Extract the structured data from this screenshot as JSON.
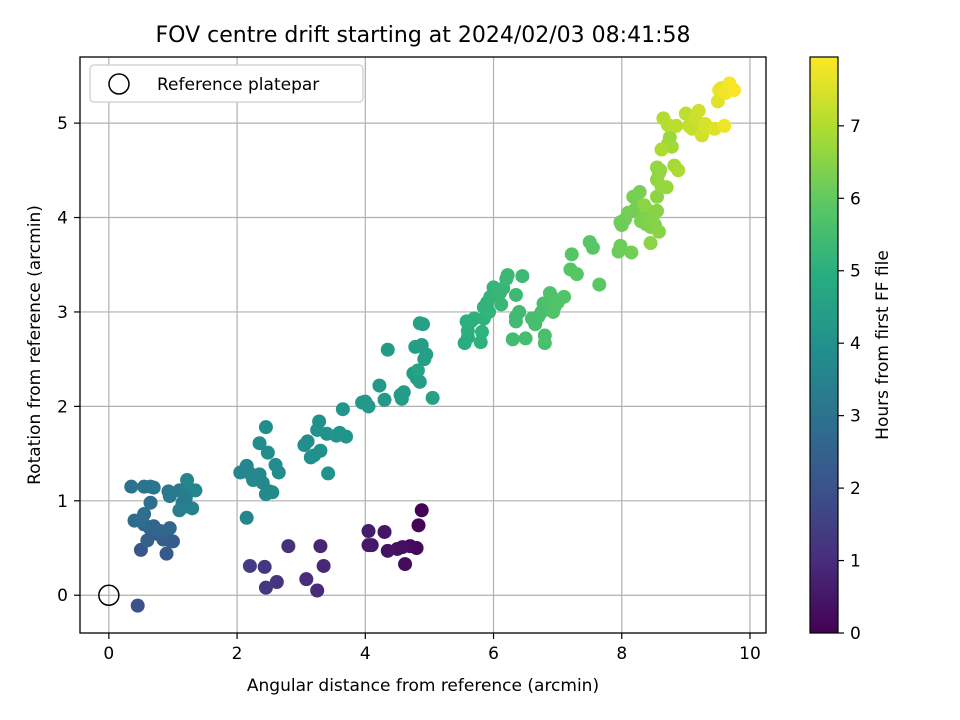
{
  "chart_data": {
    "type": "scatter",
    "title": "FOV centre drift starting at 2024/02/03 08:41:58",
    "xlabel": "Angular distance from reference (arcmin)",
    "ylabel": "Rotation from reference (arcmin)",
    "xlim": [
      -0.45,
      10.25
    ],
    "ylim": [
      -0.4,
      5.7
    ],
    "xticks": [
      "0",
      "2",
      "4",
      "6",
      "8",
      "10"
    ],
    "yticks": [
      "0",
      "1",
      "2",
      "3",
      "4",
      "5"
    ],
    "grid": true,
    "legend": {
      "placement": "top-left",
      "entries": [
        "Reference platepar"
      ]
    },
    "reference_point": {
      "x": 0,
      "y": 0
    },
    "colorbar": {
      "label": "Hours from first FF file",
      "range": [
        0,
        7.95
      ],
      "ticks": [
        "0",
        "1",
        "2",
        "3",
        "4",
        "5",
        "6",
        "7"
      ],
      "colormap": "viridis"
    },
    "points": [
      {
        "x": 4.88,
        "y": 0.9,
        "t": 0.05
      },
      {
        "x": 4.83,
        "y": 0.74,
        "t": 0.1
      },
      {
        "x": 4.8,
        "y": 0.5,
        "t": 0.15
      },
      {
        "x": 4.7,
        "y": 0.52,
        "t": 0.2
      },
      {
        "x": 4.62,
        "y": 0.33,
        "t": 0.25
      },
      {
        "x": 4.58,
        "y": 0.51,
        "t": 0.3
      },
      {
        "x": 4.5,
        "y": 0.49,
        "t": 0.35
      },
      {
        "x": 4.35,
        "y": 0.47,
        "t": 0.4
      },
      {
        "x": 4.3,
        "y": 0.67,
        "t": 0.45
      },
      {
        "x": 4.1,
        "y": 0.53,
        "t": 0.5
      },
      {
        "x": 4.05,
        "y": 0.53,
        "t": 0.55
      },
      {
        "x": 4.05,
        "y": 0.68,
        "t": 0.6
      },
      {
        "x": 3.3,
        "y": 0.52,
        "t": 0.85
      },
      {
        "x": 3.35,
        "y": 0.31,
        "t": 0.9
      },
      {
        "x": 3.25,
        "y": 0.05,
        "t": 0.95
      },
      {
        "x": 3.08,
        "y": 0.17,
        "t": 1.0
      },
      {
        "x": 2.8,
        "y": 0.52,
        "t": 1.1
      },
      {
        "x": 2.62,
        "y": 0.14,
        "t": 1.2
      },
      {
        "x": 2.45,
        "y": 0.08,
        "t": 1.25
      },
      {
        "x": 2.43,
        "y": 0.3,
        "t": 1.3
      },
      {
        "x": 2.2,
        "y": 0.31,
        "t": 1.4
      },
      {
        "x": 0.45,
        "y": -0.11,
        "t": 2.0
      },
      {
        "x": 0.5,
        "y": 0.48,
        "t": 2.1
      },
      {
        "x": 0.9,
        "y": 0.44,
        "t": 2.2
      },
      {
        "x": 0.95,
        "y": 0.58,
        "t": 2.25
      },
      {
        "x": 1.0,
        "y": 0.57,
        "t": 2.3
      },
      {
        "x": 0.85,
        "y": 0.59,
        "t": 2.35
      },
      {
        "x": 0.75,
        "y": 0.65,
        "t": 2.4
      },
      {
        "x": 0.6,
        "y": 0.58,
        "t": 2.45
      },
      {
        "x": 0.65,
        "y": 0.7,
        "t": 2.5
      },
      {
        "x": 0.7,
        "y": 0.73,
        "t": 2.55
      },
      {
        "x": 0.8,
        "y": 0.68,
        "t": 2.6
      },
      {
        "x": 0.95,
        "y": 0.71,
        "t": 2.65
      },
      {
        "x": 0.55,
        "y": 0.75,
        "t": 2.7
      },
      {
        "x": 0.4,
        "y": 0.79,
        "t": 2.75
      },
      {
        "x": 0.5,
        "y": 0.8,
        "t": 2.8
      },
      {
        "x": 0.55,
        "y": 0.86,
        "t": 2.85
      },
      {
        "x": 0.65,
        "y": 0.98,
        "t": 2.9
      },
      {
        "x": 0.35,
        "y": 1.15,
        "t": 2.95
      },
      {
        "x": 0.55,
        "y": 1.15,
        "t": 3.0
      },
      {
        "x": 0.65,
        "y": 1.15,
        "t": 3.05
      },
      {
        "x": 0.7,
        "y": 1.14,
        "t": 3.1
      },
      {
        "x": 0.93,
        "y": 1.1,
        "t": 3.15
      },
      {
        "x": 0.95,
        "y": 1.05,
        "t": 3.2
      },
      {
        "x": 1.1,
        "y": 1.11,
        "t": 3.25
      },
      {
        "x": 1.15,
        "y": 0.98,
        "t": 3.3
      },
      {
        "x": 1.1,
        "y": 0.9,
        "t": 3.35
      },
      {
        "x": 1.2,
        "y": 0.94,
        "t": 3.4
      },
      {
        "x": 1.3,
        "y": 0.92,
        "t": 3.45
      },
      {
        "x": 1.25,
        "y": 1.13,
        "t": 3.5
      },
      {
        "x": 1.22,
        "y": 1.22,
        "t": 3.55
      },
      {
        "x": 1.35,
        "y": 1.11,
        "t": 3.6
      },
      {
        "x": 1.2,
        "y": 1.03,
        "t": 3.3
      },
      {
        "x": 2.15,
        "y": 0.82,
        "t": 3.6
      },
      {
        "x": 2.05,
        "y": 1.3,
        "t": 3.62
      },
      {
        "x": 2.15,
        "y": 1.37,
        "t": 3.65
      },
      {
        "x": 2.2,
        "y": 1.29,
        "t": 3.66
      },
      {
        "x": 2.25,
        "y": 1.22,
        "t": 3.68
      },
      {
        "x": 2.35,
        "y": 1.28,
        "t": 3.7
      },
      {
        "x": 2.4,
        "y": 1.19,
        "t": 3.72
      },
      {
        "x": 2.45,
        "y": 1.07,
        "t": 3.74
      },
      {
        "x": 2.5,
        "y": 1.1,
        "t": 3.76
      },
      {
        "x": 2.55,
        "y": 1.09,
        "t": 3.78
      },
      {
        "x": 2.6,
        "y": 1.38,
        "t": 3.8
      },
      {
        "x": 2.65,
        "y": 1.3,
        "t": 3.82
      },
      {
        "x": 2.48,
        "y": 1.51,
        "t": 3.84
      },
      {
        "x": 2.35,
        "y": 1.61,
        "t": 3.86
      },
      {
        "x": 2.45,
        "y": 1.78,
        "t": 3.88
      },
      {
        "x": 3.05,
        "y": 1.59,
        "t": 3.9
      },
      {
        "x": 3.1,
        "y": 1.63,
        "t": 3.92
      },
      {
        "x": 3.15,
        "y": 1.46,
        "t": 3.94
      },
      {
        "x": 3.2,
        "y": 1.48,
        "t": 3.96
      },
      {
        "x": 3.3,
        "y": 1.53,
        "t": 3.98
      },
      {
        "x": 3.25,
        "y": 1.75,
        "t": 4.0
      },
      {
        "x": 3.28,
        "y": 1.84,
        "t": 4.02
      },
      {
        "x": 3.4,
        "y": 1.71,
        "t": 4.04
      },
      {
        "x": 3.42,
        "y": 1.29,
        "t": 4.06
      },
      {
        "x": 3.55,
        "y": 1.69,
        "t": 4.08
      },
      {
        "x": 3.6,
        "y": 1.72,
        "t": 4.1
      },
      {
        "x": 3.7,
        "y": 1.68,
        "t": 4.12
      },
      {
        "x": 3.65,
        "y": 1.97,
        "t": 4.14
      },
      {
        "x": 3.95,
        "y": 2.04,
        "t": 4.2
      },
      {
        "x": 4.0,
        "y": 2.05,
        "t": 4.22
      },
      {
        "x": 4.05,
        "y": 2.0,
        "t": 4.24
      },
      {
        "x": 4.22,
        "y": 2.22,
        "t": 4.26
      },
      {
        "x": 4.3,
        "y": 2.07,
        "t": 4.28
      },
      {
        "x": 4.35,
        "y": 2.6,
        "t": 4.3
      },
      {
        "x": 4.55,
        "y": 2.12,
        "t": 4.32
      },
      {
        "x": 4.57,
        "y": 2.08,
        "t": 4.34
      },
      {
        "x": 4.6,
        "y": 2.15,
        "t": 4.36
      },
      {
        "x": 4.75,
        "y": 2.35,
        "t": 4.38
      },
      {
        "x": 4.8,
        "y": 2.3,
        "t": 4.4
      },
      {
        "x": 4.85,
        "y": 2.26,
        "t": 4.42
      },
      {
        "x": 4.78,
        "y": 2.63,
        "t": 4.44
      },
      {
        "x": 4.88,
        "y": 2.65,
        "t": 4.46
      },
      {
        "x": 4.92,
        "y": 2.5,
        "t": 4.48
      },
      {
        "x": 4.95,
        "y": 2.55,
        "t": 4.5
      },
      {
        "x": 4.85,
        "y": 2.88,
        "t": 4.52
      },
      {
        "x": 4.9,
        "y": 2.87,
        "t": 4.54
      },
      {
        "x": 5.05,
        "y": 2.09,
        "t": 4.56
      },
      {
        "x": 4.82,
        "y": 2.38,
        "t": 4.58
      },
      {
        "x": 5.55,
        "y": 2.67,
        "t": 4.95
      },
      {
        "x": 5.6,
        "y": 2.73,
        "t": 4.98
      },
      {
        "x": 5.6,
        "y": 2.8,
        "t": 5.0
      },
      {
        "x": 5.58,
        "y": 2.9,
        "t": 5.02
      },
      {
        "x": 5.65,
        "y": 2.9,
        "t": 5.04
      },
      {
        "x": 5.7,
        "y": 2.93,
        "t": 5.06
      },
      {
        "x": 5.8,
        "y": 2.68,
        "t": 5.08
      },
      {
        "x": 5.82,
        "y": 2.79,
        "t": 5.1
      },
      {
        "x": 5.85,
        "y": 2.93,
        "t": 5.12
      },
      {
        "x": 5.85,
        "y": 3.05,
        "t": 5.14
      },
      {
        "x": 5.9,
        "y": 3.1,
        "t": 5.16
      },
      {
        "x": 5.93,
        "y": 3.0,
        "t": 5.18
      },
      {
        "x": 5.95,
        "y": 3.16,
        "t": 5.2
      },
      {
        "x": 6.0,
        "y": 3.26,
        "t": 5.22
      },
      {
        "x": 6.05,
        "y": 3.2,
        "t": 5.24
      },
      {
        "x": 6.1,
        "y": 3.2,
        "t": 5.26
      },
      {
        "x": 6.15,
        "y": 3.25,
        "t": 5.28
      },
      {
        "x": 6.12,
        "y": 3.08,
        "t": 5.3
      },
      {
        "x": 6.2,
        "y": 3.35,
        "t": 5.32
      },
      {
        "x": 6.22,
        "y": 3.39,
        "t": 5.34
      },
      {
        "x": 6.35,
        "y": 3.18,
        "t": 5.36
      },
      {
        "x": 6.45,
        "y": 3.38,
        "t": 5.38
      },
      {
        "x": 6.35,
        "y": 2.95,
        "t": 5.4
      },
      {
        "x": 6.4,
        "y": 3.0,
        "t": 5.42
      },
      {
        "x": 6.35,
        "y": 2.9,
        "t": 5.44
      },
      {
        "x": 6.3,
        "y": 2.71,
        "t": 5.46
      },
      {
        "x": 6.5,
        "y": 2.72,
        "t": 5.48
      },
      {
        "x": 6.6,
        "y": 2.93,
        "t": 5.5
      },
      {
        "x": 6.65,
        "y": 2.87,
        "t": 5.52
      },
      {
        "x": 6.7,
        "y": 2.95,
        "t": 5.54
      },
      {
        "x": 6.75,
        "y": 3.0,
        "t": 5.56
      },
      {
        "x": 6.78,
        "y": 3.09,
        "t": 5.58
      },
      {
        "x": 6.8,
        "y": 2.75,
        "t": 5.6
      },
      {
        "x": 6.8,
        "y": 2.67,
        "t": 5.62
      },
      {
        "x": 6.85,
        "y": 3.1,
        "t": 5.64
      },
      {
        "x": 6.88,
        "y": 3.2,
        "t": 5.66
      },
      {
        "x": 6.9,
        "y": 3.17,
        "t": 5.68
      },
      {
        "x": 6.93,
        "y": 3.0,
        "t": 5.7
      },
      {
        "x": 6.95,
        "y": 3.05,
        "t": 5.72
      },
      {
        "x": 7.0,
        "y": 3.1,
        "t": 5.74
      },
      {
        "x": 7.1,
        "y": 3.16,
        "t": 5.76
      },
      {
        "x": 7.2,
        "y": 3.45,
        "t": 5.78
      },
      {
        "x": 7.22,
        "y": 3.61,
        "t": 5.8
      },
      {
        "x": 7.3,
        "y": 3.4,
        "t": 5.82
      },
      {
        "x": 7.5,
        "y": 3.74,
        "t": 5.84
      },
      {
        "x": 7.55,
        "y": 3.68,
        "t": 5.86
      },
      {
        "x": 7.65,
        "y": 3.29,
        "t": 5.88
      },
      {
        "x": 7.95,
        "y": 3.64,
        "t": 6.1
      },
      {
        "x": 7.98,
        "y": 3.7,
        "t": 6.12
      },
      {
        "x": 7.98,
        "y": 3.95,
        "t": 6.14
      },
      {
        "x": 8.0,
        "y": 3.92,
        "t": 6.16
      },
      {
        "x": 8.05,
        "y": 3.98,
        "t": 6.18
      },
      {
        "x": 8.1,
        "y": 4.05,
        "t": 6.2
      },
      {
        "x": 8.15,
        "y": 3.63,
        "t": 6.22
      },
      {
        "x": 8.2,
        "y": 4.08,
        "t": 6.24
      },
      {
        "x": 8.25,
        "y": 4.15,
        "t": 6.26
      },
      {
        "x": 8.18,
        "y": 4.22,
        "t": 6.28
      },
      {
        "x": 8.28,
        "y": 4.27,
        "t": 6.3
      },
      {
        "x": 8.3,
        "y": 3.96,
        "t": 6.32
      },
      {
        "x": 8.35,
        "y": 4.02,
        "t": 6.34
      },
      {
        "x": 8.4,
        "y": 4.08,
        "t": 6.36
      },
      {
        "x": 8.38,
        "y": 3.93,
        "t": 6.38
      },
      {
        "x": 8.45,
        "y": 3.9,
        "t": 6.4
      },
      {
        "x": 8.48,
        "y": 4.0,
        "t": 6.42
      },
      {
        "x": 8.5,
        "y": 4.05,
        "t": 6.44
      },
      {
        "x": 8.52,
        "y": 3.92,
        "t": 6.46
      },
      {
        "x": 8.55,
        "y": 4.07,
        "t": 6.48
      },
      {
        "x": 8.58,
        "y": 3.85,
        "t": 6.5
      },
      {
        "x": 8.35,
        "y": 4.13,
        "t": 6.52
      },
      {
        "x": 8.45,
        "y": 3.73,
        "t": 6.54
      },
      {
        "x": 8.55,
        "y": 4.22,
        "t": 6.56
      },
      {
        "x": 8.55,
        "y": 4.4,
        "t": 6.58
      },
      {
        "x": 8.58,
        "y": 4.47,
        "t": 6.6
      },
      {
        "x": 8.6,
        "y": 4.5,
        "t": 6.62
      },
      {
        "x": 8.55,
        "y": 4.53,
        "t": 6.64
      },
      {
        "x": 8.62,
        "y": 4.33,
        "t": 6.66
      },
      {
        "x": 8.7,
        "y": 4.32,
        "t": 6.68
      },
      {
        "x": 8.75,
        "y": 4.85,
        "t": 6.7
      },
      {
        "x": 8.72,
        "y": 4.78,
        "t": 6.75
      },
      {
        "x": 8.78,
        "y": 4.75,
        "t": 6.8
      },
      {
        "x": 8.82,
        "y": 4.55,
        "t": 6.85
      },
      {
        "x": 8.88,
        "y": 4.5,
        "t": 6.9
      },
      {
        "x": 8.62,
        "y": 4.72,
        "t": 6.95
      },
      {
        "x": 8.65,
        "y": 5.05,
        "t": 7.0
      },
      {
        "x": 8.72,
        "y": 4.98,
        "t": 7.05
      },
      {
        "x": 8.85,
        "y": 4.97,
        "t": 7.1
      },
      {
        "x": 9.0,
        "y": 5.1,
        "t": 7.15
      },
      {
        "x": 9.05,
        "y": 4.97,
        "t": 7.2
      },
      {
        "x": 9.1,
        "y": 4.94,
        "t": 7.25
      },
      {
        "x": 9.15,
        "y": 5.05,
        "t": 7.3
      },
      {
        "x": 9.2,
        "y": 5.13,
        "t": 7.35
      },
      {
        "x": 9.25,
        "y": 4.87,
        "t": 7.4
      },
      {
        "x": 9.3,
        "y": 4.99,
        "t": 7.45
      },
      {
        "x": 9.35,
        "y": 4.95,
        "t": 7.5
      },
      {
        "x": 9.45,
        "y": 4.94,
        "t": 7.55
      },
      {
        "x": 9.5,
        "y": 5.23,
        "t": 7.6
      },
      {
        "x": 9.52,
        "y": 5.35,
        "t": 7.65
      },
      {
        "x": 9.55,
        "y": 5.37,
        "t": 7.7
      },
      {
        "x": 9.6,
        "y": 4.97,
        "t": 7.75
      },
      {
        "x": 9.62,
        "y": 5.32,
        "t": 7.8
      },
      {
        "x": 9.68,
        "y": 5.42,
        "t": 7.85
      },
      {
        "x": 9.75,
        "y": 5.35,
        "t": 7.9
      }
    ]
  }
}
